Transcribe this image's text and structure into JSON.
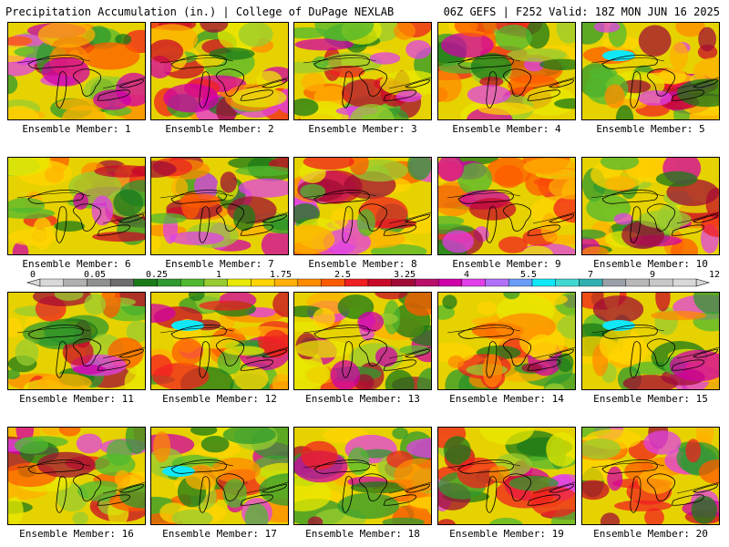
{
  "header": {
    "title_left": "Precipitation Accumulation (in.) | College of DuPage NEXLAB",
    "title_right": "06Z GEFS | F252 Valid: 18Z MON JUN 16 2025"
  },
  "colorbar": {
    "tick_labels": [
      "0",
      "0.05",
      "0.25",
      "1",
      "1.75",
      "2.5",
      "3.25",
      "4",
      "5.5",
      "7",
      "9",
      "12"
    ],
    "bin_colors": [
      "#d8d8d8",
      "#b0b0b0",
      "#909090",
      "#6e6e6e",
      "#1a7a1a",
      "#2f9a2f",
      "#50b830",
      "#98cc30",
      "#e8e800",
      "#ffd400",
      "#ffb000",
      "#ff8a00",
      "#ff5a00",
      "#f02020",
      "#c80a28",
      "#a00c36",
      "#b8106a",
      "#d000a8",
      "#e040e8",
      "#b070f8",
      "#6a9cf8",
      "#10e8f8",
      "#40d8d0",
      "#30b0b0",
      "#9aa0a8",
      "#b8b8b8",
      "#c8c8c8",
      "#d8d8d8"
    ]
  },
  "panels": [
    {
      "label": "Ensemble Member: 1"
    },
    {
      "label": "Ensemble Member: 2"
    },
    {
      "label": "Ensemble Member: 3"
    },
    {
      "label": "Ensemble Member: 4"
    },
    {
      "label": "Ensemble Member: 5"
    },
    {
      "label": "Ensemble Member: 6"
    },
    {
      "label": "Ensemble Member: 7"
    },
    {
      "label": "Ensemble Member: 8"
    },
    {
      "label": "Ensemble Member: 9"
    },
    {
      "label": "Ensemble Member: 10"
    },
    {
      "label": "Ensemble Member: 11"
    },
    {
      "label": "Ensemble Member: 12"
    },
    {
      "label": "Ensemble Member: 13"
    },
    {
      "label": "Ensemble Member: 14"
    },
    {
      "label": "Ensemble Member: 15"
    },
    {
      "label": "Ensemble Member: 16"
    },
    {
      "label": "Ensemble Member: 17"
    },
    {
      "label": "Ensemble Member: 18"
    },
    {
      "label": "Ensemble Member: 19"
    },
    {
      "label": "Ensemble Member: 20"
    }
  ]
}
